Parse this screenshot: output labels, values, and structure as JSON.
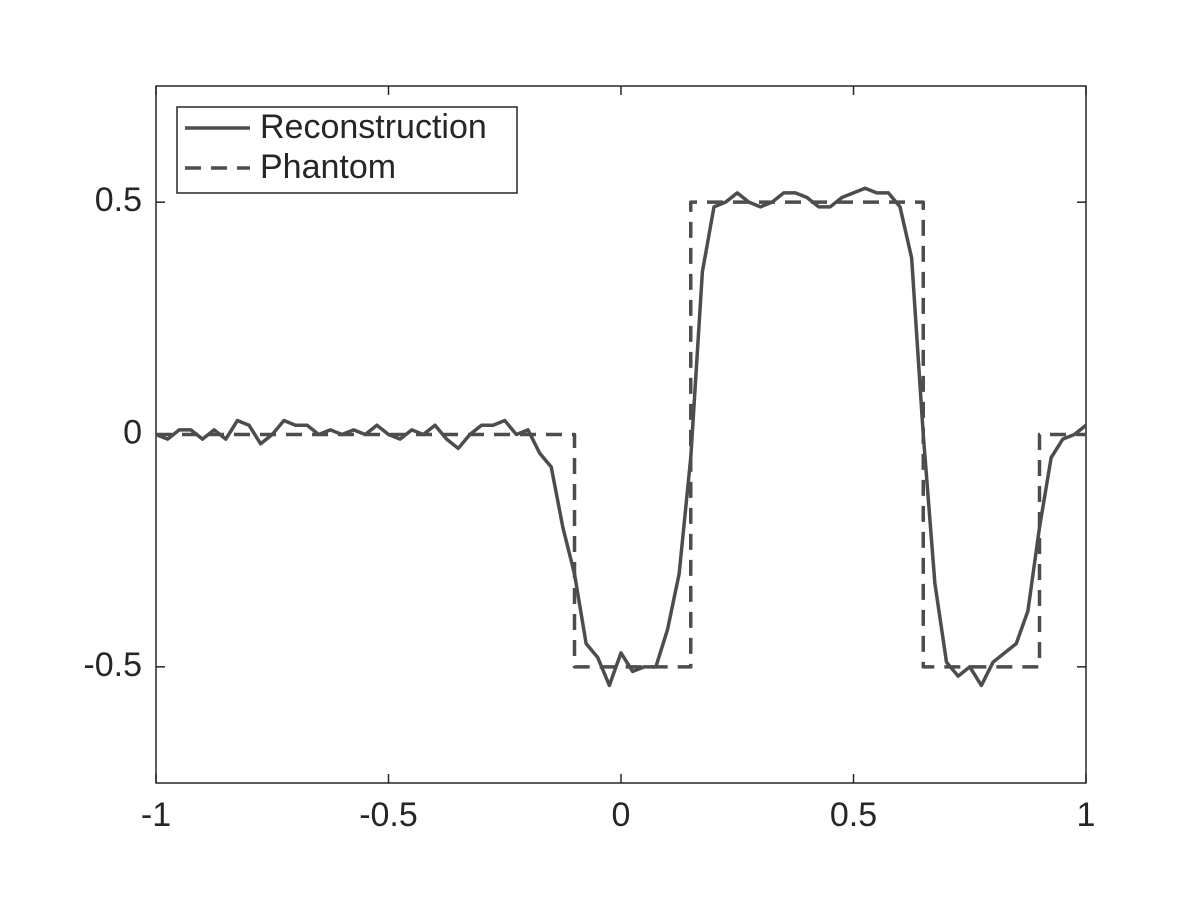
{
  "chart_data": {
    "type": "line",
    "xlim": [
      -1,
      1
    ],
    "ylim": [
      -0.75,
      0.75
    ],
    "xticks": [
      -1,
      -0.5,
      0,
      0.5,
      1
    ],
    "yticks": [
      -0.5,
      0,
      0.5
    ],
    "legend": "upper left",
    "box": true,
    "series": [
      {
        "name": "Reconstruction",
        "color": "#4d4d4d",
        "linestyle": "solid",
        "x": [
          -1,
          -0.975,
          -0.95,
          -0.925,
          -0.9,
          -0.875,
          -0.85,
          -0.825,
          -0.8,
          -0.775,
          -0.75,
          -0.725,
          -0.7,
          -0.675,
          -0.65,
          -0.625,
          -0.6,
          -0.575,
          -0.55,
          -0.525,
          -0.5,
          -0.475,
          -0.45,
          -0.425,
          -0.4,
          -0.375,
          -0.35,
          -0.325,
          -0.3,
          -0.275,
          -0.25,
          -0.225,
          -0.2,
          -0.175,
          -0.15,
          -0.125,
          -0.1,
          -0.075,
          -0.05,
          -0.025,
          0,
          0.025,
          0.05,
          0.075,
          0.1,
          0.125,
          0.15,
          0.175,
          0.2,
          0.225,
          0.25,
          0.275,
          0.3,
          0.325,
          0.35,
          0.375,
          0.4,
          0.425,
          0.45,
          0.475,
          0.5,
          0.525,
          0.55,
          0.575,
          0.6,
          0.625,
          0.65,
          0.675,
          0.7,
          0.725,
          0.75,
          0.775,
          0.8,
          0.825,
          0.85,
          0.875,
          0.9,
          0.925,
          0.95,
          0.975,
          1
        ],
        "values": [
          0,
          -0.01,
          0.01,
          0.01,
          -0.01,
          0.01,
          -0.01,
          0.03,
          0.02,
          -0.02,
          0,
          0.03,
          0.02,
          0.02,
          0,
          0.01,
          0,
          0.01,
          0,
          0.02,
          0,
          -0.01,
          0.01,
          0,
          0.02,
          -0.01,
          -0.03,
          0,
          0.02,
          0.02,
          0.03,
          0,
          0.01,
          -0.04,
          -0.07,
          -0.2,
          -0.3,
          -0.45,
          -0.48,
          -0.54,
          -0.47,
          -0.51,
          -0.5,
          -0.5,
          -0.42,
          -0.3,
          -0.05,
          0.35,
          0.49,
          0.5,
          0.52,
          0.5,
          0.49,
          0.5,
          0.52,
          0.52,
          0.51,
          0.49,
          0.49,
          0.51,
          0.52,
          0.53,
          0.52,
          0.52,
          0.49,
          0.38,
          0,
          -0.32,
          -0.49,
          -0.52,
          -0.5,
          -0.54,
          -0.49,
          -0.47,
          -0.45,
          -0.38,
          -0.2,
          -0.05,
          -0.01,
          0,
          0.02
        ]
      },
      {
        "name": "Phantom",
        "color": "#4d4d4d",
        "linestyle": "dashed",
        "x": [
          -1,
          -0.1,
          -0.1,
          0.15,
          0.15,
          0.65,
          0.65,
          0.9,
          0.9,
          1
        ],
        "values": [
          0,
          0,
          -0.5,
          -0.5,
          0.5,
          0.5,
          -0.5,
          -0.5,
          0,
          0
        ]
      }
    ]
  }
}
